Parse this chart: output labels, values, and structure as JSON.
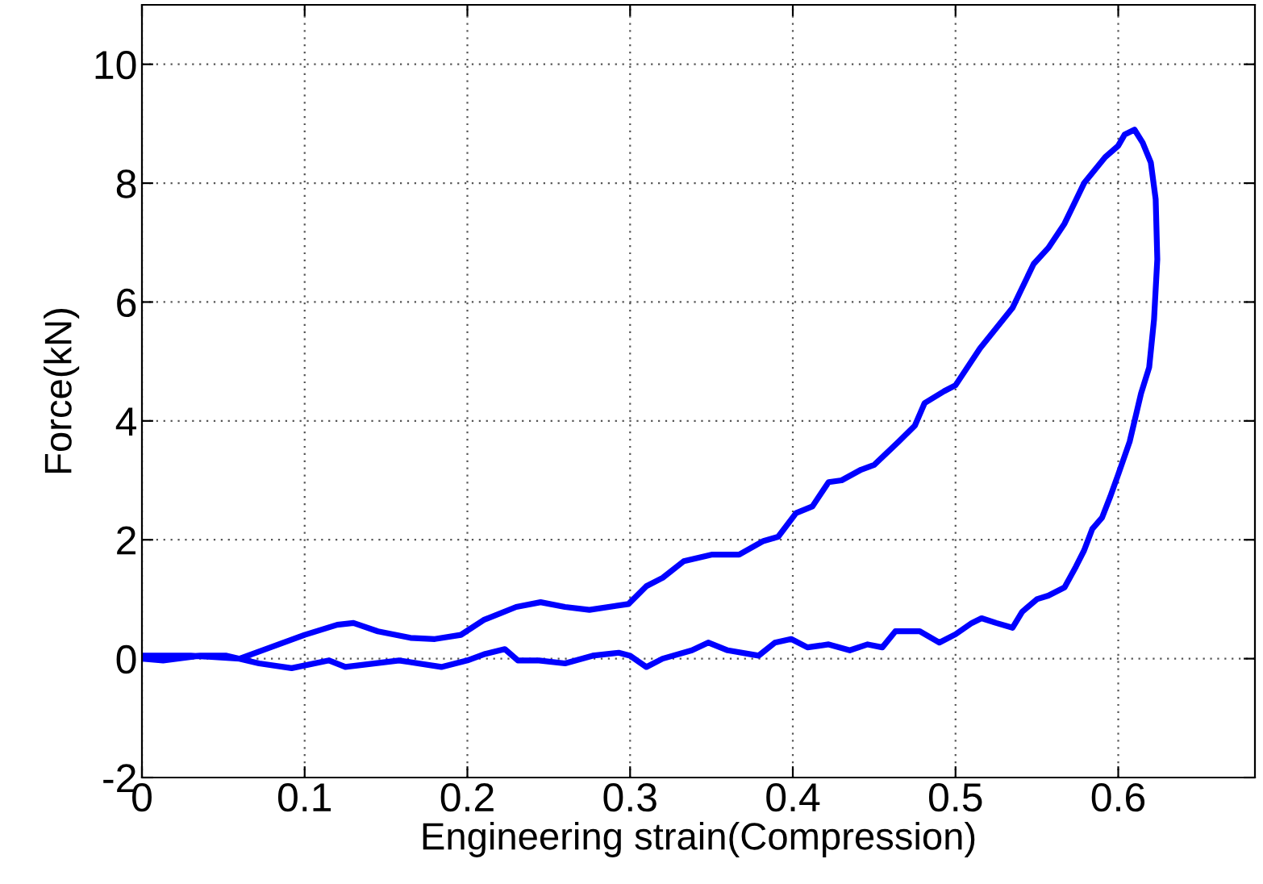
{
  "chart_data": {
    "type": "line",
    "xlabel": "Engineering strain(Compression)",
    "ylabel": "Force(kN)",
    "xlim": [
      0,
      0.684
    ],
    "ylim": [
      -2,
      11
    ],
    "xticks": [
      0,
      0.1,
      0.2,
      0.3,
      0.4,
      0.5,
      0.6
    ],
    "yticks": [
      -2,
      0,
      2,
      4,
      6,
      8,
      10
    ],
    "grid": true,
    "line_style": "solid",
    "marker": "none",
    "series": [
      {
        "color": "#0000ff",
        "x": [
          0.0,
          0.03,
          0.06,
          0.08,
          0.1,
          0.12,
          0.13,
          0.145,
          0.165,
          0.18,
          0.196,
          0.21,
          0.23,
          0.245,
          0.26,
          0.275,
          0.299,
          0.31,
          0.32,
          0.333,
          0.35,
          0.367,
          0.382,
          0.391,
          0.402,
          0.412,
          0.422,
          0.43,
          0.442,
          0.45,
          0.465,
          0.475,
          0.481,
          0.493,
          0.5,
          0.515,
          0.535,
          0.548,
          0.557,
          0.567,
          0.579,
          0.592,
          0.6,
          0.604,
          0.61,
          0.615,
          0.62,
          0.623,
          0.624,
          0.622,
          0.619,
          0.614,
          0.607,
          0.6,
          0.595,
          0.59,
          0.584,
          0.579,
          0.574,
          0.567,
          0.557,
          0.55,
          0.541,
          0.535,
          0.525,
          0.516,
          0.51,
          0.5,
          0.49,
          0.478,
          0.463,
          0.455,
          0.446,
          0.435,
          0.422,
          0.409,
          0.399,
          0.389,
          0.379,
          0.36,
          0.348,
          0.338,
          0.32,
          0.31,
          0.3,
          0.293,
          0.277,
          0.26,
          0.244,
          0.231,
          0.223,
          0.211,
          0.2,
          0.184,
          0.158,
          0.125,
          0.115,
          0.092,
          0.072,
          0.052,
          0.036,
          0.013,
          0.0
        ],
        "values": [
          0.05,
          0.05,
          0.0,
          0.2,
          0.4,
          0.57,
          0.6,
          0.46,
          0.35,
          0.33,
          0.4,
          0.65,
          0.87,
          0.95,
          0.87,
          0.82,
          0.92,
          1.22,
          1.36,
          1.64,
          1.75,
          1.75,
          1.98,
          2.05,
          2.45,
          2.56,
          2.97,
          3.0,
          3.18,
          3.26,
          3.65,
          3.92,
          4.3,
          4.5,
          4.6,
          5.22,
          5.9,
          6.64,
          6.91,
          7.32,
          8.0,
          8.44,
          8.63,
          8.82,
          8.9,
          8.68,
          8.35,
          7.73,
          6.72,
          5.71,
          4.9,
          4.46,
          3.65,
          3.1,
          2.72,
          2.37,
          2.18,
          1.82,
          1.55,
          1.2,
          1.06,
          1.0,
          0.79,
          0.52,
          0.6,
          0.68,
          0.6,
          0.41,
          0.27,
          0.46,
          0.46,
          0.19,
          0.24,
          0.14,
          0.24,
          0.19,
          0.33,
          0.27,
          0.05,
          0.14,
          0.27,
          0.14,
          0.0,
          -0.14,
          0.05,
          0.1,
          0.05,
          -0.08,
          -0.03,
          -0.03,
          0.16,
          0.08,
          -0.03,
          -0.14,
          -0.03,
          -0.14,
          -0.03,
          -0.16,
          -0.08,
          0.05,
          0.05,
          -0.03,
          0.0
        ]
      }
    ]
  }
}
